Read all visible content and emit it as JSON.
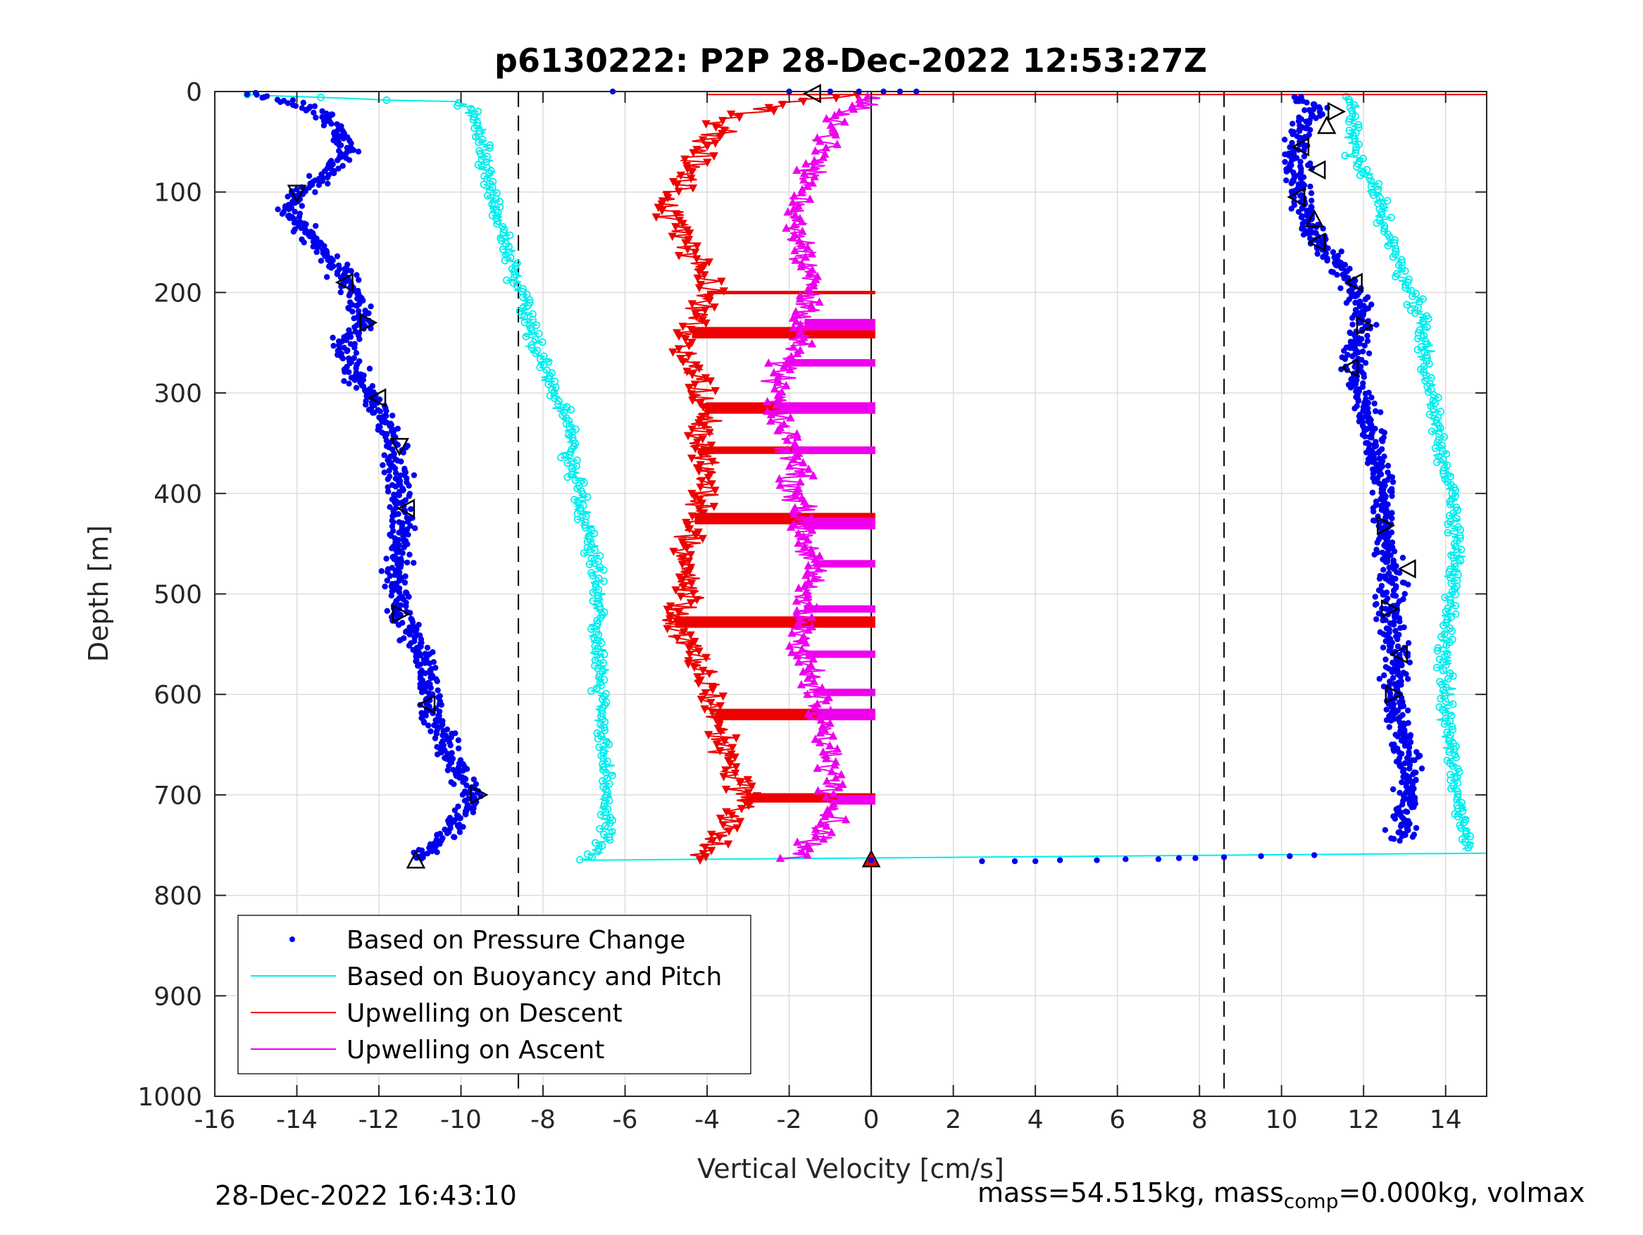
{
  "chart_data": {
    "type": "scatter",
    "title": "p6130222: P2P 28-Dec-2022 12:53:27Z",
    "xlabel": "Vertical Velocity [cm/s]",
    "ylabel": "Depth [m]",
    "xlim": [
      -16,
      15
    ],
    "ylim": [
      1000,
      0
    ],
    "y_reversed": true,
    "grid": true,
    "x_ticks": [
      -16,
      -14,
      -12,
      -10,
      -8,
      -6,
      -4,
      -2,
      0,
      2,
      4,
      6,
      8,
      10,
      12,
      14
    ],
    "y_ticks": [
      0,
      100,
      200,
      300,
      400,
      500,
      600,
      700,
      800,
      900,
      1000
    ],
    "reference_lines": {
      "vertical_dashed": [
        -8.6,
        8.6
      ],
      "vertical_solid": [
        0
      ]
    },
    "legend_position": "bottom-left",
    "legend": [
      "Based on Pressure Change",
      "Based on Buoyancy and Pitch",
      "Upwelling on Descent",
      "Upwelling on Ascent"
    ],
    "series": [
      {
        "name": "Based on Pressure Change",
        "color": "#0000ee",
        "style": "dots",
        "descent_profile": [
          [
            -15.3,
            2
          ],
          [
            -14.2,
            10
          ],
          [
            -13.4,
            20
          ],
          [
            -13.0,
            35
          ],
          [
            -12.8,
            55
          ],
          [
            -13.2,
            80
          ],
          [
            -13.9,
            100
          ],
          [
            -14.2,
            120
          ],
          [
            -13.6,
            150
          ],
          [
            -12.9,
            180
          ],
          [
            -12.6,
            200
          ],
          [
            -12.4,
            230
          ],
          [
            -12.9,
            250
          ],
          [
            -12.6,
            280
          ],
          [
            -12.2,
            305
          ],
          [
            -11.8,
            330
          ],
          [
            -11.6,
            355
          ],
          [
            -11.5,
            390
          ],
          [
            -11.4,
            420
          ],
          [
            -11.5,
            450
          ],
          [
            -11.6,
            480
          ],
          [
            -11.5,
            520
          ],
          [
            -10.9,
            560
          ],
          [
            -10.8,
            600
          ],
          [
            -10.5,
            640
          ],
          [
            -10.0,
            680
          ],
          [
            -9.7,
            700
          ],
          [
            -10.1,
            730
          ],
          [
            -10.6,
            750
          ],
          [
            -11.1,
            765
          ]
        ],
        "ascent_profile": [
          [
            10.3,
            5
          ],
          [
            10.9,
            15
          ],
          [
            10.5,
            40
          ],
          [
            10.3,
            60
          ],
          [
            10.4,
            85
          ],
          [
            10.4,
            105
          ],
          [
            10.7,
            125
          ],
          [
            10.9,
            150
          ],
          [
            11.5,
            180
          ],
          [
            11.8,
            200
          ],
          [
            12.0,
            230
          ],
          [
            11.8,
            260
          ],
          [
            11.8,
            280
          ],
          [
            12.1,
            320
          ],
          [
            12.3,
            360
          ],
          [
            12.5,
            400
          ],
          [
            12.5,
            440
          ],
          [
            12.7,
            480
          ],
          [
            12.6,
            520
          ],
          [
            12.8,
            560
          ],
          [
            12.7,
            600
          ],
          [
            12.9,
            640
          ],
          [
            13.1,
            680
          ],
          [
            13.0,
            720
          ],
          [
            12.9,
            745
          ]
        ],
        "transition_points": [
          [
            0.0,
            765
          ],
          [
            2.7,
            766
          ],
          [
            3.5,
            766
          ],
          [
            4.0,
            766
          ],
          [
            4.6,
            765
          ],
          [
            5.5,
            765
          ],
          [
            6.2,
            764
          ],
          [
            7.0,
            764
          ],
          [
            7.5,
            763
          ],
          [
            7.9,
            763
          ],
          [
            8.6,
            762
          ],
          [
            9.5,
            761
          ],
          [
            10.2,
            761
          ],
          [
            10.8,
            760
          ]
        ],
        "surface_points": [
          [
            -6.3,
            0
          ],
          [
            -2.0,
            0
          ],
          [
            -1.0,
            0
          ],
          [
            -0.3,
            0
          ],
          [
            0.3,
            0
          ],
          [
            0.7,
            0
          ],
          [
            1.1,
            0
          ]
        ],
        "triangle_markers": [
          [
            -14.0,
            100,
            "down"
          ],
          [
            -12.8,
            190,
            "left"
          ],
          [
            -12.3,
            230,
            "right"
          ],
          [
            -12.0,
            305,
            "left"
          ],
          [
            -11.5,
            352,
            "down"
          ],
          [
            -11.3,
            415,
            "left"
          ],
          [
            -11.5,
            520,
            "right"
          ],
          [
            -10.8,
            610,
            "left"
          ],
          [
            -9.6,
            700,
            "right"
          ],
          [
            -11.1,
            766,
            "up"
          ],
          [
            -1.4,
            2,
            "left"
          ],
          [
            11.3,
            20,
            "right"
          ],
          [
            11.1,
            35,
            "up"
          ],
          [
            10.5,
            55,
            "left"
          ],
          [
            10.9,
            78,
            "left"
          ],
          [
            10.4,
            105,
            "left"
          ],
          [
            10.8,
            128,
            "up"
          ],
          [
            10.9,
            150,
            "left"
          ],
          [
            11.8,
            190,
            "left"
          ],
          [
            12.0,
            233,
            "right"
          ],
          [
            11.7,
            275,
            "left"
          ],
          [
            12.5,
            432,
            "right"
          ],
          [
            13.1,
            475,
            "left"
          ],
          [
            12.6,
            515,
            "right"
          ],
          [
            12.9,
            560,
            "left"
          ],
          [
            12.7,
            600,
            "right"
          ]
        ]
      },
      {
        "name": "Based on Buoyancy and Pitch",
        "color": "#00eeee",
        "style": "line-with-circles",
        "descent_profile": [
          [
            -15.3,
            3
          ],
          [
            -11.0,
            10
          ],
          [
            -10.0,
            10
          ],
          [
            -9.7,
            25
          ],
          [
            -9.5,
            40
          ],
          [
            -9.4,
            70
          ],
          [
            -9.2,
            110
          ],
          [
            -8.9,
            150
          ],
          [
            -8.6,
            195
          ],
          [
            -8.4,
            210
          ],
          [
            -8.3,
            240
          ],
          [
            -8.0,
            270
          ],
          [
            -7.7,
            300
          ],
          [
            -7.4,
            330
          ],
          [
            -7.3,
            370
          ],
          [
            -7.1,
            400
          ],
          [
            -6.9,
            440
          ],
          [
            -6.7,
            480
          ],
          [
            -6.6,
            510
          ],
          [
            -6.7,
            530
          ],
          [
            -6.6,
            560
          ],
          [
            -6.6,
            600
          ],
          [
            -6.5,
            650
          ],
          [
            -6.5,
            700
          ],
          [
            -6.4,
            740
          ],
          [
            -6.8,
            760
          ],
          [
            -7.0,
            765
          ]
        ],
        "ascent_profile": [
          [
            11.5,
            5
          ],
          [
            11.8,
            15
          ],
          [
            11.7,
            40
          ],
          [
            11.8,
            70
          ],
          [
            12.3,
            100
          ],
          [
            12.6,
            140
          ],
          [
            12.9,
            180
          ],
          [
            13.2,
            200
          ],
          [
            13.5,
            240
          ],
          [
            13.5,
            280
          ],
          [
            13.7,
            310
          ],
          [
            13.9,
            350
          ],
          [
            14.1,
            400
          ],
          [
            14.3,
            450
          ],
          [
            14.1,
            500
          ],
          [
            14.0,
            550
          ],
          [
            14.0,
            600
          ],
          [
            14.1,
            650
          ],
          [
            14.3,
            700
          ],
          [
            14.5,
            740
          ],
          [
            14.6,
            755
          ]
        ],
        "transition_line": [
          [
            -7.0,
            765
          ],
          [
            15.0,
            758
          ]
        ]
      },
      {
        "name": "Upwelling on Descent",
        "color": "#ee0000",
        "style": "line-with-down-triangles",
        "profile": [
          [
            0.0,
            3
          ],
          [
            -1.5,
            8
          ],
          [
            -2.5,
            15
          ],
          [
            -3.5,
            30
          ],
          [
            -4.0,
            50
          ],
          [
            -4.3,
            70
          ],
          [
            -4.8,
            100
          ],
          [
            -5.0,
            120
          ],
          [
            -4.5,
            140
          ],
          [
            -4.2,
            170
          ],
          [
            -4.0,
            200
          ],
          [
            -4.3,
            230
          ],
          [
            -4.5,
            260
          ],
          [
            -4.2,
            290
          ],
          [
            -4.0,
            320
          ],
          [
            -4.2,
            350
          ],
          [
            -4.0,
            380
          ],
          [
            -4.2,
            410
          ],
          [
            -4.4,
            440
          ],
          [
            -4.6,
            470
          ],
          [
            -4.4,
            500
          ],
          [
            -4.8,
            530
          ],
          [
            -4.4,
            560
          ],
          [
            -4.0,
            590
          ],
          [
            -3.8,
            620
          ],
          [
            -3.6,
            650
          ],
          [
            -3.3,
            680
          ],
          [
            -3.0,
            700
          ],
          [
            -3.5,
            730
          ],
          [
            -4.0,
            755
          ],
          [
            -4.5,
            765
          ]
        ],
        "bands": [
          [
            200,
            1
          ],
          [
            240,
            5
          ],
          [
            315,
            5
          ],
          [
            357,
            3
          ],
          [
            425,
            5
          ],
          [
            528,
            5
          ],
          [
            620,
            5
          ],
          [
            703,
            4
          ]
        ],
        "top_line": [
          [
            -4.0,
            3
          ],
          [
            15.0,
            3
          ]
        ],
        "end_marker": [
          0.0,
          765
        ]
      },
      {
        "name": "Upwelling on Ascent",
        "color": "#ee00ee",
        "style": "line-with-up-triangles",
        "profile": [
          [
            0.0,
            5
          ],
          [
            -0.5,
            20
          ],
          [
            -1.0,
            40
          ],
          [
            -1.3,
            70
          ],
          [
            -1.7,
            100
          ],
          [
            -1.8,
            130
          ],
          [
            -1.6,
            160
          ],
          [
            -1.5,
            190
          ],
          [
            -1.6,
            230
          ],
          [
            -2.0,
            260
          ],
          [
            -2.3,
            290
          ],
          [
            -2.2,
            330
          ],
          [
            -1.9,
            360
          ],
          [
            -1.8,
            400
          ],
          [
            -1.6,
            440
          ],
          [
            -1.4,
            470
          ],
          [
            -1.6,
            500
          ],
          [
            -1.7,
            540
          ],
          [
            -1.5,
            580
          ],
          [
            -1.3,
            620
          ],
          [
            -1.0,
            660
          ],
          [
            -0.8,
            700
          ],
          [
            -1.0,
            730
          ],
          [
            -1.6,
            755
          ],
          [
            -2.0,
            765
          ]
        ],
        "bands": [
          [
            232,
            5
          ],
          [
            270,
            3
          ],
          [
            315,
            5
          ],
          [
            357,
            3
          ],
          [
            430,
            5
          ],
          [
            470,
            3
          ],
          [
            515,
            3
          ],
          [
            560,
            3
          ],
          [
            598,
            3
          ],
          [
            620,
            5
          ],
          [
            705,
            4
          ]
        ]
      }
    ]
  },
  "footer": {
    "timestamp": "28-Dec-2022 16:43:10",
    "mass_text_a": "mass=54.515kg, mass",
    "mass_sub": "comp",
    "mass_text_b": "=0.000kg, volmax"
  }
}
